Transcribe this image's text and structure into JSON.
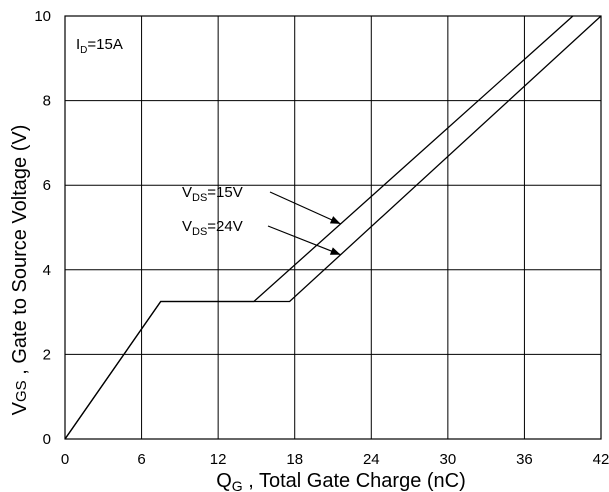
{
  "chart_data": {
    "type": "line",
    "xlabel": {
      "main": "Q",
      "sub": "G",
      "rest": " , Total Gate Charge (nC)"
    },
    "ylabel": {
      "main": "V",
      "sub": "GS",
      "rest": " , Gate to Source Voltage (V)"
    },
    "xlim": [
      0,
      42
    ],
    "ylim": [
      0,
      10
    ],
    "x_ticks": [
      0,
      6,
      12,
      18,
      24,
      30,
      36,
      42
    ],
    "y_ticks": [
      0,
      2,
      4,
      6,
      8,
      10
    ],
    "grid": true,
    "condition": {
      "main": "I",
      "sub": "D",
      "rest": "=15A"
    },
    "series": [
      {
        "label": {
          "main": "V",
          "sub": "DS",
          "rest": "=15V"
        },
        "points": [
          [
            0,
            0
          ],
          [
            7.5,
            3.25
          ],
          [
            14.8,
            3.25
          ],
          [
            39.8,
            10
          ]
        ]
      },
      {
        "label": {
          "main": "V",
          "sub": "DS",
          "rest": "=24V"
        },
        "points": [
          [
            0,
            0
          ],
          [
            7.5,
            3.25
          ],
          [
            17.6,
            3.25
          ],
          [
            42,
            10
          ]
        ]
      }
    ]
  }
}
